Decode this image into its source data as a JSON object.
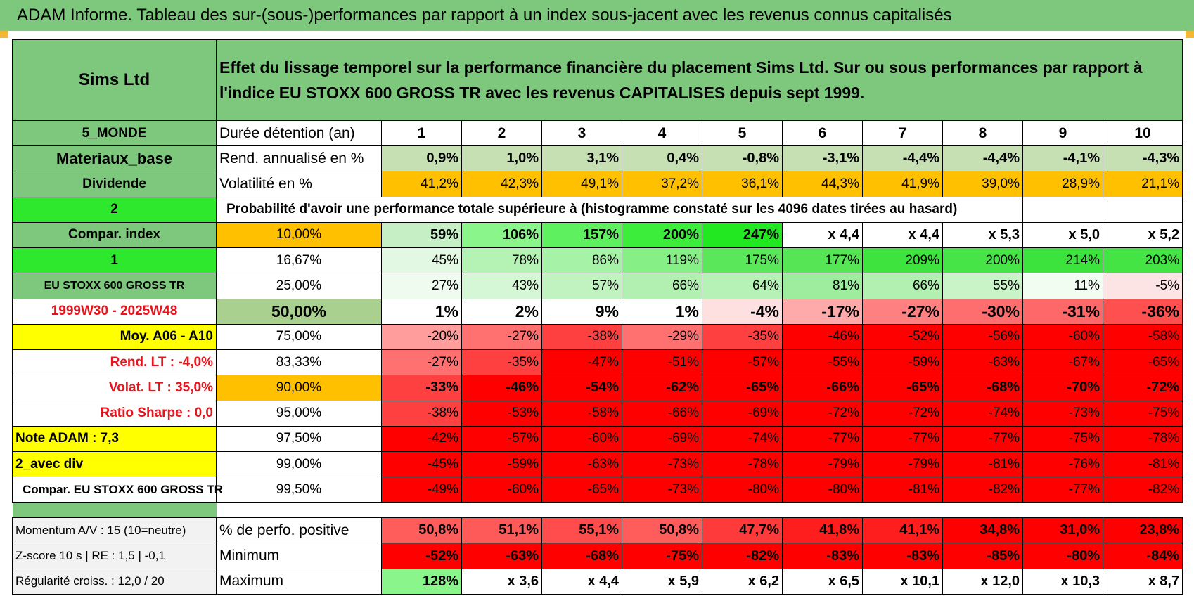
{
  "header": {
    "title": "ADAM Informe. Tableau des sur-(sous-)performances par rapport à un index sous-jacent avec les revenus connus capitalisés"
  },
  "intro": {
    "name": "Sims Ltd",
    "desc": "Effet du lissage temporel sur la performance financière du placement Sims Ltd. Sur ou sous performances par rapport à l'indice EU STOXX 600 GROSS TR avec les revenus CAPITALISES depuis sept 1999."
  },
  "colors": {
    "green_header": "#7dc87d",
    "orange": "#ffc000",
    "yellow": "#ffff00",
    "bright_green": "#2ee82e",
    "red": "#ff0000"
  },
  "rows": [
    {
      "side": "5_MONDE",
      "label": "Durée détention (an)",
      "cells": [
        "1",
        "2",
        "3",
        "4",
        "5",
        "6",
        "7",
        "8",
        "9",
        "10"
      ]
    },
    {
      "side": "Materiaux_base",
      "label": "Rend. annualisé en %",
      "cells": [
        "0,9%",
        "1,0%",
        "3,1%",
        "0,4%",
        "-0,8%",
        "-3,1%",
        "-4,4%",
        "-4,4%",
        "-4,1%",
        "-4,3%"
      ]
    },
    {
      "side": "Dividende",
      "label": "Volatilité en %",
      "cells": [
        "41,2%",
        "42,3%",
        "49,1%",
        "37,2%",
        "36,1%",
        "44,3%",
        "41,9%",
        "39,0%",
        "28,9%",
        "21,1%"
      ]
    },
    {
      "side": "2",
      "label": "Probabilité d'avoir une performance totale supérieure à (histogramme constaté sur les 4096 dates tirées au hasard)",
      "cells": []
    },
    {
      "side": "Compar. index",
      "label": "10,00%",
      "cells": [
        "59%",
        "106%",
        "157%",
        "200%",
        "247%",
        "x 4,4",
        "x 4,4",
        "x 5,3",
        "x 5,0",
        "x 5,2"
      ]
    },
    {
      "side": "1",
      "label": "16,67%",
      "cells": [
        "45%",
        "78%",
        "86%",
        "119%",
        "175%",
        "177%",
        "209%",
        "200%",
        "214%",
        "203%"
      ]
    },
    {
      "side": "EU STOXX 600 GROSS TR",
      "label": "25,00%",
      "cells": [
        "27%",
        "43%",
        "57%",
        "66%",
        "64%",
        "81%",
        "66%",
        "55%",
        "11%",
        "-5%"
      ]
    },
    {
      "side": "1999W30 - 2025W48",
      "label": "50,00%",
      "cells": [
        "1%",
        "2%",
        "9%",
        "1%",
        "-4%",
        "-17%",
        "-27%",
        "-30%",
        "-31%",
        "-36%"
      ]
    },
    {
      "side": "Moy. A06 - A10",
      "label": "75,00%",
      "cells": [
        "-20%",
        "-27%",
        "-38%",
        "-29%",
        "-35%",
        "-46%",
        "-52%",
        "-56%",
        "-60%",
        "-58%"
      ]
    },
    {
      "side": "Rend. LT :    -4,0%",
      "label": "83,33%",
      "cells": [
        "-27%",
        "-35%",
        "-47%",
        "-51%",
        "-57%",
        "-55%",
        "-59%",
        "-63%",
        "-67%",
        "-65%"
      ]
    },
    {
      "side": "Volat. LT :    35,0%",
      "label": "90,00%",
      "cells": [
        "-33%",
        "-46%",
        "-54%",
        "-62%",
        "-65%",
        "-66%",
        "-65%",
        "-68%",
        "-70%",
        "-72%"
      ]
    },
    {
      "side": "Ratio Sharpe :     0,0",
      "label": "95,00%",
      "cells": [
        "-38%",
        "-53%",
        "-58%",
        "-66%",
        "-69%",
        "-72%",
        "-72%",
        "-74%",
        "-73%",
        "-75%"
      ]
    },
    {
      "side": "Note ADAM : 7,3",
      "label": "97,50%",
      "cells": [
        "-42%",
        "-57%",
        "-60%",
        "-69%",
        "-74%",
        "-77%",
        "-77%",
        "-77%",
        "-75%",
        "-78%"
      ]
    },
    {
      "side": "2_avec div",
      "label": "99,00%",
      "cells": [
        "-45%",
        "-59%",
        "-63%",
        "-73%",
        "-78%",
        "-79%",
        "-79%",
        "-81%",
        "-76%",
        "-81%"
      ]
    },
    {
      "side": "Compar. EU STOXX 600 GROSS TR",
      "label": "99,50%",
      "cells": [
        "-49%",
        "-60%",
        "-65%",
        "-73%",
        "-80%",
        "-80%",
        "-81%",
        "-82%",
        "-77%",
        "-82%"
      ]
    }
  ],
  "summary": [
    {
      "side": "Momentum A/V : 15 (10=neutre)",
      "label": "% de perfo. positive",
      "cells": [
        "50,8%",
        "51,1%",
        "55,1%",
        "50,8%",
        "47,7%",
        "41,8%",
        "41,1%",
        "34,8%",
        "31,0%",
        "23,8%"
      ]
    },
    {
      "side": "Z-score 10 s | RE : 1,5 | -0,1",
      "label": "Minimum",
      "cells": [
        "-52%",
        "-63%",
        "-68%",
        "-75%",
        "-82%",
        "-83%",
        "-83%",
        "-85%",
        "-80%",
        "-84%"
      ]
    },
    {
      "side": "Régularité croiss. : 12,0 / 20",
      "label": "Maximum",
      "cells": [
        "128%",
        "x 3,6",
        "x 4,4",
        "x 5,9",
        "x 6,2",
        "x 6,5",
        "x 10,1",
        "x 12,0",
        "x 10,3",
        "x 8,7"
      ]
    }
  ]
}
